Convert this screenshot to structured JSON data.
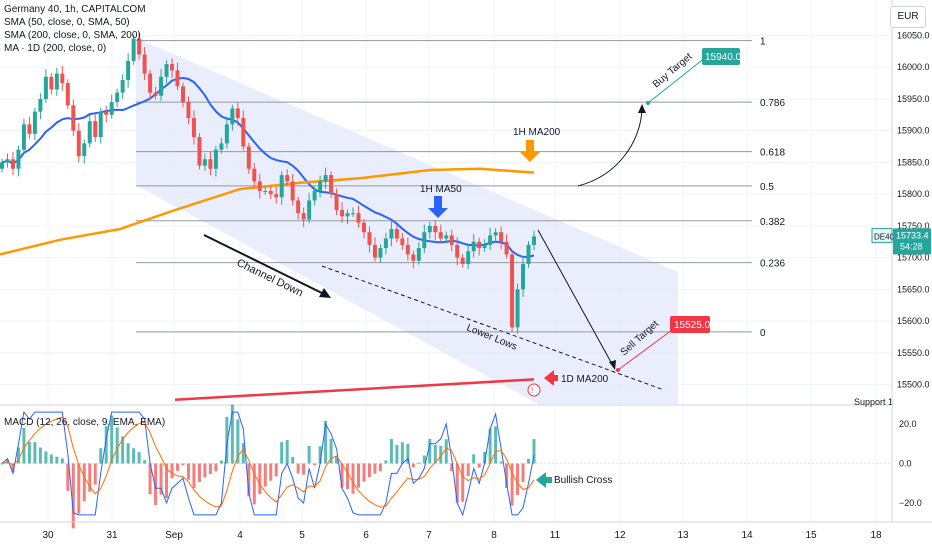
{
  "header": {
    "title": "Germany 40, 1h, CAPITALCOM",
    "indicators": [
      "SMA (50, close, 0, SMA, 50)",
      "SMA (200, close, 0, SMA, 200)",
      "MA · 1D (200, close, 0)"
    ],
    "currency": "EUR",
    "macd_label": "MACD (12, 26, close, 9, EMA, EMA)"
  },
  "colors": {
    "up": "#26a69a",
    "down": "#ef5350",
    "sma50": "#2962ff",
    "sma200": "#ff9800",
    "ma1d": "#f23645",
    "channel": "#e3e8fb",
    "buy": "#26a69a",
    "sell": "#f23645",
    "macd": "#2962ff",
    "signal": "#ff6d00"
  },
  "chart_data": [
    {
      "type": "candlestick",
      "title": "Germany 40, 1h, CAPITALCOM",
      "ylim": [
        15470,
        16075
      ],
      "y_ticks": [
        "16050.0",
        "16000.0",
        "15950.0",
        "15900.0",
        "15850.0",
        "15800.0",
        "15750.0",
        "15700.0",
        "15650.0",
        "15600.0",
        "15550.0",
        "15500.0"
      ],
      "y_tick_values": [
        16050,
        16000,
        15950,
        15900,
        15850,
        15800,
        15750,
        15700,
        15650,
        15600,
        15550,
        15500
      ],
      "x_ticks": [
        "30",
        "31",
        "Sep",
        "4",
        "5",
        "6",
        "7",
        "8",
        "11",
        "12",
        "13",
        "14",
        "15",
        "18"
      ],
      "last_price": "15733.4",
      "last_symbol": "DE40",
      "countdown": "54:28",
      "fibonacci": [
        {
          "level": "1",
          "price": 16042
        },
        {
          "level": "0.786",
          "price": 15945
        },
        {
          "level": "0.618",
          "price": 15867
        },
        {
          "level": "0.5",
          "price": 15813
        },
        {
          "level": "0.382",
          "price": 15758
        },
        {
          "level": "0.236",
          "price": 15692
        },
        {
          "level": "0",
          "price": 15583
        }
      ],
      "annotations": {
        "buy_target_label": "Buy Target",
        "buy_target_value": "15940.0",
        "sell_target_label": "Sell Target",
        "sell_target_value": "15525.0",
        "channel_label": "Channel Down",
        "lower_lows_label": "Lower Lows",
        "ma200_1h_label": "1H MA200",
        "ma50_1h_label": "1H MA50",
        "ma200_1d_label": "1D MA200",
        "support_label": "Support 1"
      },
      "candles_close": [
        15850,
        15855,
        15840,
        15870,
        15910,
        15895,
        15930,
        15950,
        15985,
        15965,
        15990,
        15975,
        15940,
        15900,
        15860,
        15880,
        15915,
        15890,
        15930,
        15925,
        15945,
        15960,
        15980,
        16010,
        16045,
        16020,
        15990,
        15960,
        15955,
        15985,
        16005,
        15995,
        15970,
        15945,
        15920,
        15890,
        15845,
        15855,
        15840,
        15870,
        15880,
        15910,
        15935,
        15920,
        15875,
        15840,
        15820,
        15805,
        15805,
        15800,
        15795,
        15830,
        15820,
        15790,
        15770,
        15760,
        15790,
        15805,
        15820,
        15830,
        15800,
        15775,
        15765,
        15770,
        15770,
        15755,
        15740,
        15720,
        15700,
        15715,
        15730,
        15745,
        15730,
        15720,
        15705,
        15695,
        15715,
        15740,
        15750,
        15740,
        15730,
        15735,
        15720,
        15700,
        15690,
        15710,
        15725,
        15715,
        15720,
        15735,
        15740,
        15725,
        15705,
        15590,
        15650,
        15690,
        15720,
        15733.4
      ],
      "series": [
        {
          "name": "SMA (50, close, 0, SMA, 50)",
          "role": "sma50"
        },
        {
          "name": "SMA (200, close, 0, SMA, 200)",
          "role": "sma200"
        },
        {
          "name": "MA · 1D (200, close, 0)",
          "role": "ma1d"
        }
      ]
    },
    {
      "type": "macd",
      "title": "MACD (12, 26, close, 9, EMA, EMA)",
      "ylim": [
        -28,
        30
      ],
      "y_ticks": [
        "20.0",
        "0.0",
        "−20.0"
      ],
      "y_tick_values": [
        20,
        0,
        -20
      ],
      "annotation": "Bullish Cross"
    }
  ]
}
